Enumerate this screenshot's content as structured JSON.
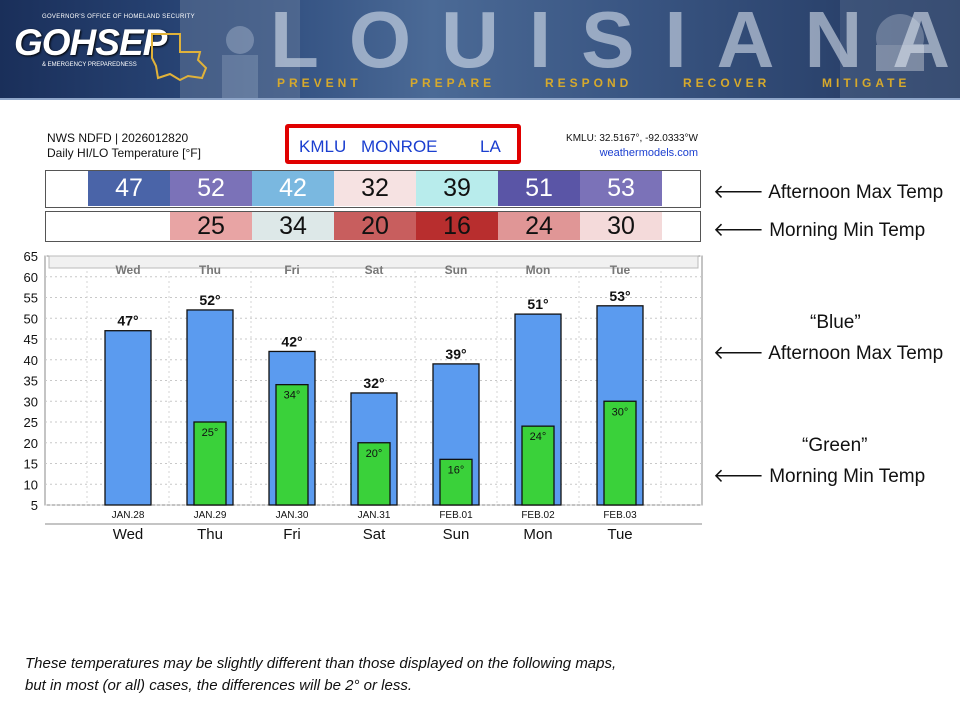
{
  "banner": {
    "logo": "GOHSEP",
    "logo_top": "GOVERNOR'S OFFICE OF HOMELAND SECURITY",
    "logo_bottom": "& EMERGENCY PREPAREDNESS",
    "title": "LOUISIANA",
    "motto": [
      "PREVENT",
      "PREPARE",
      "RESPOND",
      "RECOVER",
      "MITIGATE"
    ]
  },
  "header": {
    "left_line1": "NWS NDFD | 2026012820",
    "left_line2": "Daily HI/LO Temperature [°F]",
    "station_id": "KMLU",
    "station_city": "MONROE",
    "station_state": "LA",
    "coords": "KMLU: 32.5167°, -92.0333°W",
    "site": "weathermodels.com"
  },
  "tables": {
    "max_row": [
      {
        "value": "47",
        "color": "#4a64a8"
      },
      {
        "value": "52",
        "color": "#7b72b8"
      },
      {
        "value": "42",
        "color": "#7ab8e0"
      },
      {
        "value": "32",
        "color": "#f6e2e2"
      },
      {
        "value": "39",
        "color": "#b8ecec"
      },
      {
        "value": "51",
        "color": "#5a55a6"
      },
      {
        "value": "53",
        "color": "#7b72b8"
      }
    ],
    "min_row": [
      {
        "value": "",
        "color": "#ffffff"
      },
      {
        "value": "25",
        "color": "#e8a4a4"
      },
      {
        "value": "34",
        "color": "#dde8e8"
      },
      {
        "value": "20",
        "color": "#c85e5e"
      },
      {
        "value": "16",
        "color": "#b82e2e"
      },
      {
        "value": "24",
        "color": "#e09696"
      },
      {
        "value": "30",
        "color": "#f4dada"
      }
    ],
    "max_label": "Afternoon Max Temp",
    "min_label": "Morning Min Temp"
  },
  "chart_data": {
    "type": "bar",
    "categories": [
      "Wed",
      "Thu",
      "Fri",
      "Sat",
      "Sun",
      "Mon",
      "Tue"
    ],
    "dates": [
      "JAN.28",
      "JAN.29",
      "JAN.30",
      "JAN.31",
      "FEB.01",
      "FEB.02",
      "FEB.03"
    ],
    "series": [
      {
        "name": "Afternoon Max Temp",
        "values": [
          47,
          52,
          42,
          32,
          39,
          51,
          53
        ],
        "color": "#5b9bef"
      },
      {
        "name": "Morning Min Temp",
        "values": [
          null,
          25,
          34,
          20,
          16,
          24,
          30
        ],
        "color": "#3ad13a"
      }
    ],
    "ylim": [
      5,
      65
    ],
    "yticks": [
      5,
      10,
      15,
      20,
      25,
      30,
      35,
      40,
      45,
      50,
      55,
      60,
      65
    ],
    "grid": true,
    "max_labels": [
      "47°",
      "52°",
      "42°",
      "32°",
      "39°",
      "51°",
      "53°"
    ],
    "min_labels": [
      "",
      "25°",
      "34°",
      "20°",
      "16°",
      "24°",
      "30°"
    ]
  },
  "annotations": {
    "blue_quote": "“Blue”",
    "blue_label": "Afternoon Max Temp",
    "green_quote": "“Green”",
    "green_label": "Morning Min Temp",
    "arrow": "🡐"
  },
  "footnote": {
    "line1": "These temperatures may be slightly different than those displayed on the following maps,",
    "line2": "but in most (or all) cases, the differences will be 2° or less."
  }
}
